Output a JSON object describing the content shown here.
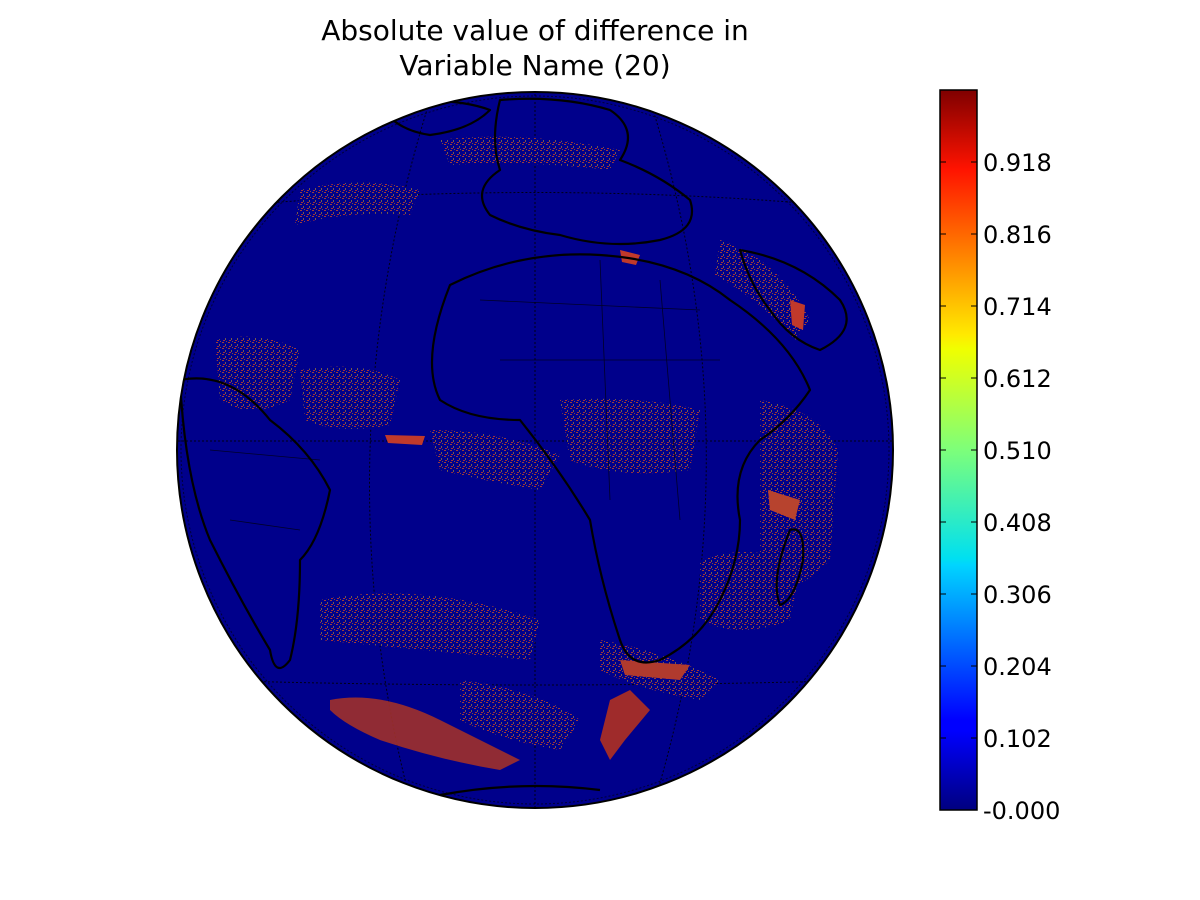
{
  "figure": {
    "title_line1": "Absolute value of difference in",
    "title_line2": "Variable Name (20)"
  },
  "map": {
    "projection": "orthographic",
    "background_color": "#00008b",
    "difference_color": "#c0392b",
    "coastline_color": "#000000",
    "graticule": true
  },
  "colorbar": {
    "colormap": "jet",
    "orientation": "vertical",
    "range": [
      0.0,
      1.02
    ],
    "ticks": [
      "-0.000",
      "0.102",
      "0.204",
      "0.306",
      "0.408",
      "0.510",
      "0.612",
      "0.714",
      "0.816",
      "0.918"
    ],
    "tick_values": [
      0.0,
      0.102,
      0.204,
      0.306,
      0.408,
      0.51,
      0.612,
      0.714,
      0.816,
      0.918
    ]
  }
}
